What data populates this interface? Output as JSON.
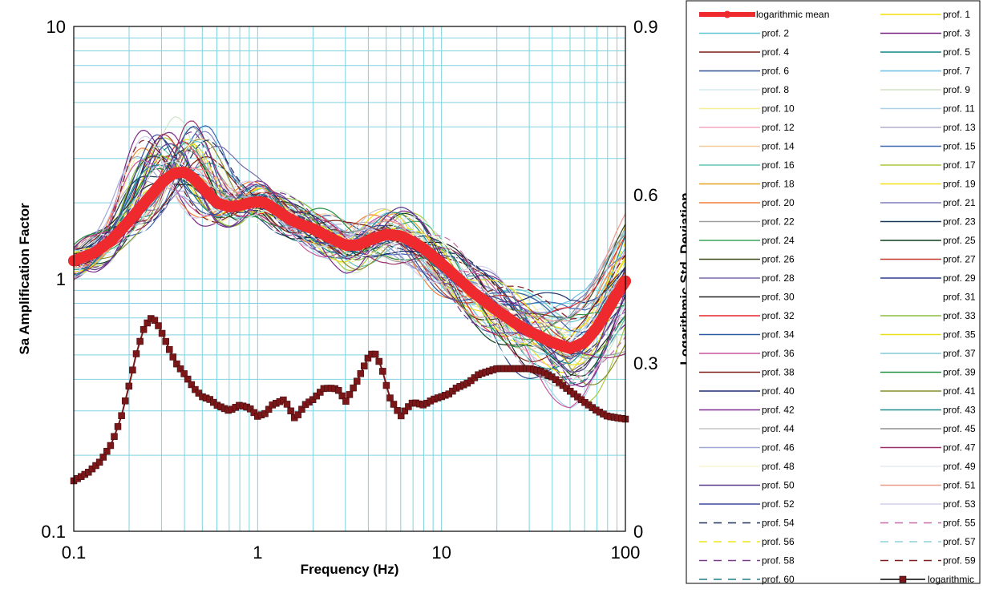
{
  "chart_data": {
    "type": "line",
    "xlabel": "Frequency (Hz)",
    "ylabel": "Sa Amplification Factor",
    "y2label": "Logarithmic Std. Deviation",
    "x_scale": "log",
    "y_scale": "log",
    "xlim": [
      0.1,
      100
    ],
    "ylim": [
      0.1,
      10
    ],
    "y2lim": [
      0,
      0.9
    ],
    "grid": true,
    "legend_position": "right",
    "x_ticks": [
      "0.1",
      "1",
      "10",
      "100"
    ],
    "y_ticks": [
      "0.1",
      "1",
      "10"
    ],
    "y2_ticks": [
      "0",
      "0.3",
      "0.6",
      "0.9"
    ],
    "colors": {
      "grid": "#7fd3e0",
      "mean": "#ee2a2e",
      "std": "#7b1619"
    },
    "mean_series": {
      "name": "logarithmic mean",
      "x": [
        0.1,
        0.13,
        0.16,
        0.2,
        0.25,
        0.3,
        0.35,
        0.4,
        0.45,
        0.5,
        0.6,
        0.7,
        0.8,
        0.9,
        1.0,
        1.1,
        1.3,
        1.5,
        1.8,
        2.0,
        2.5,
        3.0,
        3.5,
        4.0,
        5.0,
        6.0,
        7.0,
        8.0,
        10.0,
        12.0,
        15.0,
        20.0,
        25.0,
        30.0,
        40.0,
        50.0,
        60.0,
        70.0,
        80.0,
        90.0,
        100.0
      ],
      "y": [
        1.18,
        1.27,
        1.42,
        1.7,
        2.05,
        2.4,
        2.62,
        2.65,
        2.5,
        2.3,
        2.0,
        1.93,
        1.95,
        2.0,
        2.02,
        2.0,
        1.85,
        1.72,
        1.62,
        1.58,
        1.45,
        1.36,
        1.36,
        1.42,
        1.5,
        1.48,
        1.4,
        1.32,
        1.15,
        1.02,
        0.88,
        0.75,
        0.67,
        0.62,
        0.56,
        0.53,
        0.56,
        0.64,
        0.75,
        0.87,
        0.98
      ]
    },
    "std_series": {
      "name": "logarithmic",
      "x": [
        0.1,
        0.12,
        0.14,
        0.16,
        0.18,
        0.2,
        0.22,
        0.24,
        0.26,
        0.28,
        0.3,
        0.33,
        0.36,
        0.4,
        0.45,
        0.5,
        0.55,
        0.6,
        0.7,
        0.8,
        0.9,
        1.0,
        1.1,
        1.2,
        1.4,
        1.6,
        1.8,
        2.0,
        2.3,
        2.6,
        2.8,
        3.0,
        3.5,
        4.0,
        4.3,
        4.7,
        5.2,
        6.0,
        6.5,
        7.0,
        8.0,
        9.0,
        10.0,
        11.0,
        12.0,
        14.0,
        16.0,
        20.0,
        25.0,
        30.0,
        35.0,
        40.0,
        50.0,
        60.0,
        70.0,
        80.0,
        100.0
      ],
      "y": [
        0.09,
        0.105,
        0.125,
        0.155,
        0.2,
        0.26,
        0.32,
        0.36,
        0.38,
        0.375,
        0.355,
        0.325,
        0.3,
        0.28,
        0.255,
        0.24,
        0.235,
        0.225,
        0.215,
        0.225,
        0.22,
        0.205,
        0.21,
        0.225,
        0.235,
        0.2,
        0.225,
        0.235,
        0.255,
        0.255,
        0.25,
        0.23,
        0.27,
        0.31,
        0.32,
        0.295,
        0.24,
        0.205,
        0.22,
        0.23,
        0.225,
        0.235,
        0.24,
        0.245,
        0.255,
        0.265,
        0.28,
        0.29,
        0.29,
        0.29,
        0.285,
        0.275,
        0.25,
        0.23,
        0.215,
        0.205,
        0.2
      ]
    },
    "profiles": {
      "count": 60,
      "dashed_from": 54,
      "colors": [
        "#f2e10a",
        "#5fc6cf",
        "#7a2486",
        "#7a1c12",
        "#108784",
        "#2b4b8f",
        "#6bbde6",
        "#d8ecf6",
        "#cfe4c7",
        "#f5ef9a",
        "#a9d3ea",
        "#f3a6c3",
        "#b6aecb",
        "#f5c99a",
        "#3d67b1",
        "#60c4b9",
        "#a9c93e",
        "#e7a21c",
        "#f3e015",
        "#f47f3a",
        "#7e7fbf",
        "#a0a0a0",
        "#1a3a5c",
        "#3da65a",
        "#0f3d1f",
        "#3a4a1c",
        "#c0392b",
        "#7b6aaa",
        "#2a3e8f",
        "#222222",
        "#ffffff",
        "#e3262d",
        "#8cbf3f",
        "#2d5aa5",
        "#e8e01b",
        "#c9559d",
        "#86ccd6",
        "#7d1f14",
        "#23903f",
        "#1d2d6b",
        "#8c8c2c",
        "#7a2a8c",
        "#1a8a8a",
        "#c6c6c6",
        "#8f8f8f",
        "#9fa9d6",
        "#9c2e6b",
        "#fbf7cf",
        "#e4ecf2",
        "#5b3b8e",
        "#ea9a8f",
        "#3a4a9c",
        "#d2cfee",
        "#1e2f5a",
        "#c26ba7",
        "#f2e518",
        "#8fd2dc",
        "#7b3a8e",
        "#7a1c1c",
        "#1e7e8c"
      ],
      "legend_labels": [
        "prof.  1",
        "prof.  2",
        "prof.  3",
        "prof.  4",
        "prof.  5",
        "prof.  6",
        "prof.  7",
        "prof.  8",
        "prof.  9",
        "prof. 10",
        "prof. 11",
        "prof. 12",
        "prof. 13",
        "prof. 14",
        "prof. 15",
        "prof. 16",
        "prof. 17",
        "prof. 18",
        "prof. 19",
        "prof. 20",
        "prof. 21",
        "prof. 22",
        "prof. 23",
        "prof. 24",
        "prof. 25",
        "prof. 26",
        "prof. 27",
        "prof. 28",
        "prof. 29",
        "prof. 30",
        "prof. 31",
        "prof. 32",
        "prof. 33",
        "prof. 34",
        "prof. 35",
        "prof. 36",
        "prof. 37",
        "prof. 38",
        "prof. 39",
        "prof. 40",
        "prof. 41",
        "prof. 42",
        "prof. 43",
        "prof. 44",
        "prof. 45",
        "prof. 46",
        "prof. 47",
        "prof. 48",
        "prof. 49",
        "prof. 50",
        "prof. 51",
        "prof. 52",
        "prof. 53",
        "prof. 54",
        "prof. 55",
        "prof. 56",
        "prof. 57",
        "prof. 58",
        "prof. 59",
        "prof. 60"
      ]
    }
  }
}
